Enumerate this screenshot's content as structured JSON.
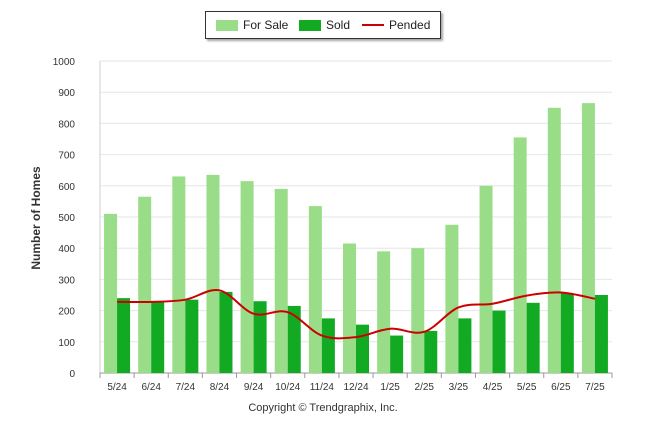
{
  "legend": {
    "items": [
      {
        "label": "For Sale",
        "color": "#99dd88"
      },
      {
        "label": "Sold",
        "color": "#11aa22"
      },
      {
        "label": "Pended",
        "color": "#cc0000"
      }
    ]
  },
  "copyright": "Copyright © Trendgraphix, Inc.",
  "chart_data": {
    "type": "bar",
    "categories": [
      "5/24",
      "6/24",
      "7/24",
      "8/24",
      "9/24",
      "10/24",
      "11/24",
      "12/24",
      "1/25",
      "2/25",
      "3/25",
      "4/25",
      "5/25",
      "6/25",
      "7/25"
    ],
    "series": [
      {
        "name": "For Sale",
        "type": "bar",
        "color": "#99dd88",
        "values": [
          510,
          565,
          630,
          635,
          615,
          590,
          535,
          415,
          390,
          400,
          475,
          600,
          755,
          850,
          865
        ]
      },
      {
        "name": "Sold",
        "type": "bar",
        "color": "#11aa22",
        "values": [
          240,
          230,
          235,
          260,
          230,
          215,
          175,
          155,
          120,
          135,
          175,
          200,
          225,
          255,
          250
        ]
      },
      {
        "name": "Pended",
        "type": "line",
        "color": "#cc0000",
        "values": [
          228,
          228,
          235,
          265,
          190,
          195,
          120,
          115,
          142,
          132,
          210,
          222,
          248,
          258,
          238
        ]
      }
    ],
    "title": "",
    "xlabel": "",
    "ylabel": "Number of Homes",
    "ylim": [
      0,
      1000
    ],
    "yticks": [
      0,
      100,
      200,
      300,
      400,
      500,
      600,
      700,
      800,
      900,
      1000
    ],
    "grid": true,
    "legend_position": "top-center"
  }
}
